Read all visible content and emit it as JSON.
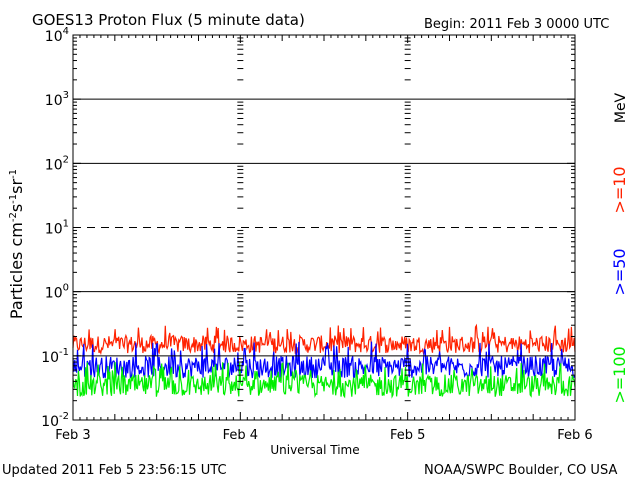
{
  "header": {
    "title": "GOES13 Proton Flux (5 minute data)",
    "begin": "Begin: 2011 Feb 3 0000 UTC"
  },
  "footer": {
    "updated": "Updated 2011 Feb  5 23:56:15 UTC",
    "source": "NOAA/SWPC Boulder, CO USA"
  },
  "chart_data": {
    "type": "line",
    "title": "GOES13 Proton Flux (5 minute data)",
    "xlabel": "Universal Time",
    "ylabel": "Particles cm-2s-1sr-1",
    "yscale": "log",
    "ylim": [
      0.01,
      10000
    ],
    "xlim": [
      "2011-02-03",
      "2011-02-06"
    ],
    "x_ticks": [
      "Feb 3",
      "Feb 4",
      "Feb 5",
      "Feb 6"
    ],
    "y_ticks": [
      "10-2",
      "10-1",
      "100",
      "101",
      "102",
      "103",
      "104"
    ],
    "threshold_lines": [
      {
        "value": 10,
        "style": "dashed"
      },
      {
        "value": 1,
        "style": "solid"
      },
      {
        "value": 100,
        "style": "solid"
      },
      {
        "value": 1000,
        "style": "solid"
      }
    ],
    "legend_placement": "right",
    "legend_unit": "MeV",
    "series": [
      {
        "name": ">=10",
        "color": "#ff2200",
        "typical": 0.17,
        "low": 0.11,
        "high": 0.3
      },
      {
        "name": ">=50",
        "color": "#0000ff",
        "typical": 0.075,
        "low": 0.045,
        "high": 0.17
      },
      {
        "name": ">=100",
        "color": "#00ee00",
        "typical": 0.04,
        "low": 0.023,
        "high": 0.08
      }
    ]
  }
}
